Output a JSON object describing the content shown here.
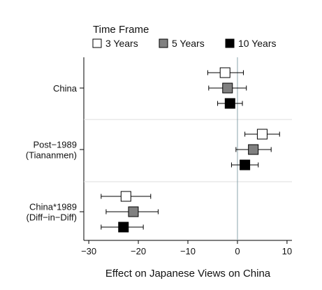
{
  "legend": {
    "title": "Time Frame",
    "placement": "top",
    "items": [
      {
        "label": "3 Years",
        "color": "#ffffff"
      },
      {
        "label": "5 Years",
        "color": "#808080"
      },
      {
        "label": "10 Years",
        "color": "#000000"
      }
    ]
  },
  "chart_data": {
    "type": "scatter",
    "subtype": "coefficient-plot",
    "xlabel": "Effect on Japanese Views on China",
    "xlim": [
      -31,
      11
    ],
    "xticks": [
      -30,
      -20,
      -10,
      0,
      10
    ],
    "xtick_labels": [
      "−30",
      "−20",
      "−10",
      "0",
      "10"
    ],
    "reference_line_x": 0,
    "grid": false,
    "groups": [
      {
        "label_lines": [
          "China"
        ]
      },
      {
        "label_lines": [
          "Post−1989",
          "(Tiananmen)"
        ]
      },
      {
        "label_lines": [
          "China*1989",
          "(Diff−in−Diff)"
        ]
      }
    ],
    "series": [
      {
        "name": "3 Years",
        "color": "#ffffff",
        "points": [
          {
            "group": 0,
            "estimate": -2.5,
            "ci": [
              -6.0,
              1.2
            ]
          },
          {
            "group": 1,
            "estimate": 5.0,
            "ci": [
              1.5,
              8.5
            ]
          },
          {
            "group": 2,
            "estimate": -22.5,
            "ci": [
              -27.5,
              -17.5
            ]
          }
        ]
      },
      {
        "name": "5 Years",
        "color": "#808080",
        "points": [
          {
            "group": 0,
            "estimate": -2.0,
            "ci": [
              -5.8,
              1.8
            ]
          },
          {
            "group": 1,
            "estimate": 3.2,
            "ci": [
              -0.3,
              6.8
            ]
          },
          {
            "group": 2,
            "estimate": -21.0,
            "ci": [
              -26.5,
              -16.0
            ]
          }
        ]
      },
      {
        "name": "10 Years",
        "color": "#000000",
        "points": [
          {
            "group": 0,
            "estimate": -1.5,
            "ci": [
              -4.0,
              1.0
            ]
          },
          {
            "group": 1,
            "estimate": 1.5,
            "ci": [
              -1.2,
              4.2
            ]
          },
          {
            "group": 2,
            "estimate": -23.0,
            "ci": [
              -27.5,
              -19.0
            ]
          }
        ]
      }
    ]
  }
}
